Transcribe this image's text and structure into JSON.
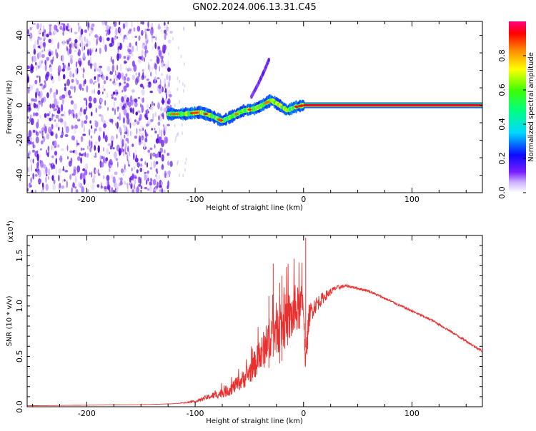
{
  "page_title": "GN02.2024.006.13.31.C45",
  "chart_data": [
    {
      "type": "heatmap",
      "title": "GN02.2024.006.13.31.C45",
      "xlabel": "Height of straight line (km)",
      "ylabel": "Frequency (Hz)",
      "xlim": [
        -255,
        165
      ],
      "ylim": [
        -50,
        48
      ],
      "x_ticks": [
        "-200",
        "-100",
        "0",
        "100"
      ],
      "y_ticks": [
        "-40",
        "-20",
        "0",
        "20",
        "40"
      ],
      "grid": false,
      "colormap": "rainbow",
      "regions": [
        {
          "name": "diffuse noise",
          "x_range": [
            -255,
            -122
          ],
          "y_range": [
            -50,
            48
          ],
          "amplitude": 0.15
        },
        {
          "name": "fragmented signal",
          "x_range": [
            -125,
            0
          ],
          "y_range": [
            -10,
            5
          ],
          "amplitude": 0.5
        },
        {
          "name": "steady line",
          "x_range": [
            0,
            165
          ],
          "frequency": 0,
          "amplitude": 0.95
        }
      ],
      "ridge": {
        "x": [
          -125,
          -110,
          -95,
          -85,
          -75,
          -65,
          -55,
          -45,
          -38,
          -30,
          -22,
          -15,
          -8,
          0
        ],
        "y": [
          -5,
          -5,
          -4,
          -6,
          -9,
          -6,
          -3,
          -2,
          0,
          3,
          0,
          -3,
          -1,
          0
        ]
      },
      "branch": {
        "x": [
          -48,
          -42,
          -36,
          -32
        ],
        "y": [
          5,
          12,
          20,
          26
        ]
      },
      "colorbar": {
        "label": "Normalized spectral amplitude",
        "range": [
          0,
          1
        ],
        "ticks": [
          "0.0",
          "0.2",
          "0.4",
          "0.6",
          "0.8"
        ]
      }
    },
    {
      "type": "line",
      "xlabel": "Height of straight line (km)",
      "ylabel": "SNR (10 * v/v)",
      "scale_label": "(x10",
      "scale_exponent": "4",
      "scale_close": ")",
      "xlim": [
        -255,
        165
      ],
      "ylim": [
        0,
        17000
      ],
      "x_ticks": [
        "-200",
        "-100",
        "0",
        "100"
      ],
      "y_ticks": [
        "0.0",
        "0.5",
        "1.0",
        "1.5"
      ],
      "grid": false,
      "series": [
        {
          "color": "#e8302e",
          "x": [
            -255,
            -200,
            -150,
            -120,
            -100,
            -90,
            -80,
            -70,
            -60,
            -55,
            -50,
            -45,
            -40,
            -35,
            -30,
            -25,
            -20,
            -15,
            -10,
            -5,
            0,
            2,
            5,
            10,
            20,
            30,
            40,
            60,
            80,
            100,
            120,
            140,
            165
          ],
          "y": [
            100,
            150,
            200,
            300,
            500,
            900,
            1200,
            1600,
            2300,
            2800,
            3400,
            4200,
            5000,
            6000,
            7200,
            7800,
            8200,
            8600,
            9000,
            9600,
            10200,
            4000,
            9000,
            10000,
            11000,
            11800,
            12000,
            11500,
            10500,
            9500,
            8500,
            7200,
            5500
          ],
          "noise": [
            0,
            0,
            0,
            0,
            100,
            250,
            400,
            600,
            800,
            1000,
            1200,
            1400,
            1800,
            2000,
            2200,
            2600,
            2800,
            2800,
            2600,
            2400,
            2000,
            1600,
            1200,
            900,
            500,
            250,
            150,
            120,
            120,
            120,
            120,
            120,
            120
          ],
          "spikes": [
            {
              "x": -28,
              "y": 14200
            },
            {
              "x": -20,
              "y": 13000
            },
            {
              "x": -32,
              "y": 11000
            },
            {
              "x": -22,
              "y": 12300
            },
            {
              "x": 2,
              "y": 16800
            }
          ]
        }
      ]
    }
  ]
}
